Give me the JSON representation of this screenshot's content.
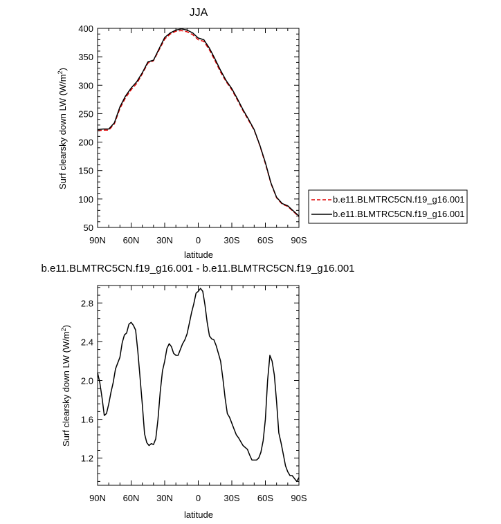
{
  "chart_data": [
    {
      "type": "line",
      "title": "JJA",
      "xlabel": "latitude",
      "ylabel": "Surf clearsky down LW (W/m",
      "ylabel_sup": "2",
      "ylabel_end": ")",
      "xlim": [
        90,
        -90
      ],
      "ylim": [
        50,
        400
      ],
      "x_ticks": [
        90,
        60,
        30,
        0,
        -30,
        -60,
        -90
      ],
      "x_tick_labels": [
        "90N",
        "60N",
        "30N",
        "0",
        "30S",
        "60S",
        "90S"
      ],
      "y_ticks": [
        50,
        100,
        150,
        200,
        250,
        300,
        350,
        400
      ],
      "y_tick_labels": [
        "50",
        "100",
        "150",
        "200",
        "250",
        "300",
        "350",
        "400"
      ],
      "legend_position": "right",
      "series": [
        {
          "name": "b.e11.BLMTRC5CN.f19_g16.001",
          "color": "#e00000",
          "dash": "dashed",
          "x": [
            90,
            85,
            80,
            75,
            70,
            65,
            60,
            55,
            50,
            45,
            40,
            35,
            30,
            25,
            20,
            15,
            10,
            5,
            0,
            -5,
            -10,
            -15,
            -20,
            -25,
            -30,
            -35,
            -40,
            -45,
            -50,
            -55,
            -60,
            -65,
            -70,
            -75,
            -80,
            -85,
            -90
          ],
          "y": [
            220,
            221,
            221,
            232,
            259,
            278,
            292,
            303,
            320,
            339,
            343,
            362,
            381,
            390,
            395,
            396,
            394,
            389,
            380,
            377,
            362,
            343,
            323,
            306,
            292,
            274,
            255,
            238,
            221,
            194,
            162,
            127,
            102,
            91,
            87,
            78,
            69
          ]
        },
        {
          "name": "b.e11.BLMTRC5CN.f19_g16.001",
          "color": "#000000",
          "dash": "solid",
          "x": [
            90,
            85,
            80,
            75,
            70,
            65,
            60,
            55,
            50,
            45,
            40,
            35,
            30,
            25,
            20,
            15,
            10,
            5,
            0,
            -5,
            -10,
            -15,
            -20,
            -25,
            -30,
            -35,
            -40,
            -45,
            -50,
            -55,
            -60,
            -65,
            -70,
            -75,
            -80,
            -85,
            -90
          ],
          "y": [
            222,
            223,
            223,
            234,
            262,
            281,
            295,
            306,
            322,
            341,
            344,
            364,
            384,
            392,
            397,
            399,
            397,
            392,
            383,
            380,
            365,
            346,
            326,
            308,
            294,
            276,
            257,
            240,
            222,
            195,
            164,
            128,
            103,
            92,
            88,
            79,
            70
          ]
        }
      ]
    },
    {
      "type": "line",
      "title": "b.e11.BLMTRC5CN.f19_g16.001 - b.e11.BLMTRC5CN.f19_g16.001",
      "xlabel": "latitude",
      "ylabel": "Surf clearsky down LW (W/m",
      "ylabel_sup": "2",
      "ylabel_end": ")",
      "xlim": [
        90,
        -90
      ],
      "ylim": [
        0.92,
        2.98
      ],
      "x_ticks": [
        90,
        60,
        30,
        0,
        -30,
        -60,
        -90
      ],
      "x_tick_labels": [
        "90N",
        "60N",
        "30N",
        "0",
        "30S",
        "60S",
        "90S"
      ],
      "y_ticks": [
        1.2,
        1.6,
        2.0,
        2.4,
        2.8
      ],
      "y_tick_labels": [
        "1.2",
        "1.6",
        "2.0",
        "2.4",
        "2.8"
      ],
      "series": [
        {
          "color": "#000000",
          "dash": "solid",
          "x": [
            90,
            88,
            86,
            84,
            82,
            80,
            78,
            76,
            74,
            72,
            70,
            68,
            66,
            64,
            62,
            60,
            58,
            56,
            54,
            52,
            50,
            48,
            46,
            44,
            42,
            40,
            38,
            36,
            34,
            32,
            30,
            28,
            26,
            24,
            22,
            20,
            18,
            16,
            14,
            12,
            10,
            8,
            6,
            4,
            2,
            0,
            -2,
            -4,
            -6,
            -8,
            -10,
            -12,
            -14,
            -16,
            -18,
            -20,
            -22,
            -24,
            -26,
            -28,
            -30,
            -32,
            -34,
            -36,
            -38,
            -40,
            -42,
            -44,
            -46,
            -48,
            -50,
            -52,
            -54,
            -56,
            -58,
            -60,
            -62,
            -64,
            -66,
            -68,
            -70,
            -72,
            -74,
            -76,
            -78,
            -80,
            -82,
            -84,
            -86,
            -88,
            -90
          ],
          "y": [
            2.08,
            1.98,
            1.82,
            1.64,
            1.66,
            1.76,
            1.88,
            1.98,
            2.12,
            2.18,
            2.24,
            2.39,
            2.47,
            2.49,
            2.58,
            2.6,
            2.57,
            2.52,
            2.3,
            2.03,
            1.75,
            1.45,
            1.36,
            1.33,
            1.35,
            1.34,
            1.4,
            1.6,
            1.88,
            2.1,
            2.2,
            2.33,
            2.38,
            2.35,
            2.28,
            2.26,
            2.26,
            2.32,
            2.38,
            2.42,
            2.48,
            2.59,
            2.7,
            2.79,
            2.9,
            2.92,
            2.95,
            2.92,
            2.78,
            2.6,
            2.46,
            2.43,
            2.42,
            2.36,
            2.28,
            2.2,
            2.02,
            1.82,
            1.66,
            1.62,
            1.56,
            1.5,
            1.44,
            1.41,
            1.37,
            1.33,
            1.31,
            1.29,
            1.23,
            1.18,
            1.18,
            1.18,
            1.2,
            1.26,
            1.38,
            1.6,
            2.0,
            2.26,
            2.2,
            2.06,
            1.78,
            1.46,
            1.36,
            1.24,
            1.12,
            1.06,
            1.02,
            1.02,
            0.99,
            0.96,
            1.0
          ]
        }
      ]
    }
  ]
}
